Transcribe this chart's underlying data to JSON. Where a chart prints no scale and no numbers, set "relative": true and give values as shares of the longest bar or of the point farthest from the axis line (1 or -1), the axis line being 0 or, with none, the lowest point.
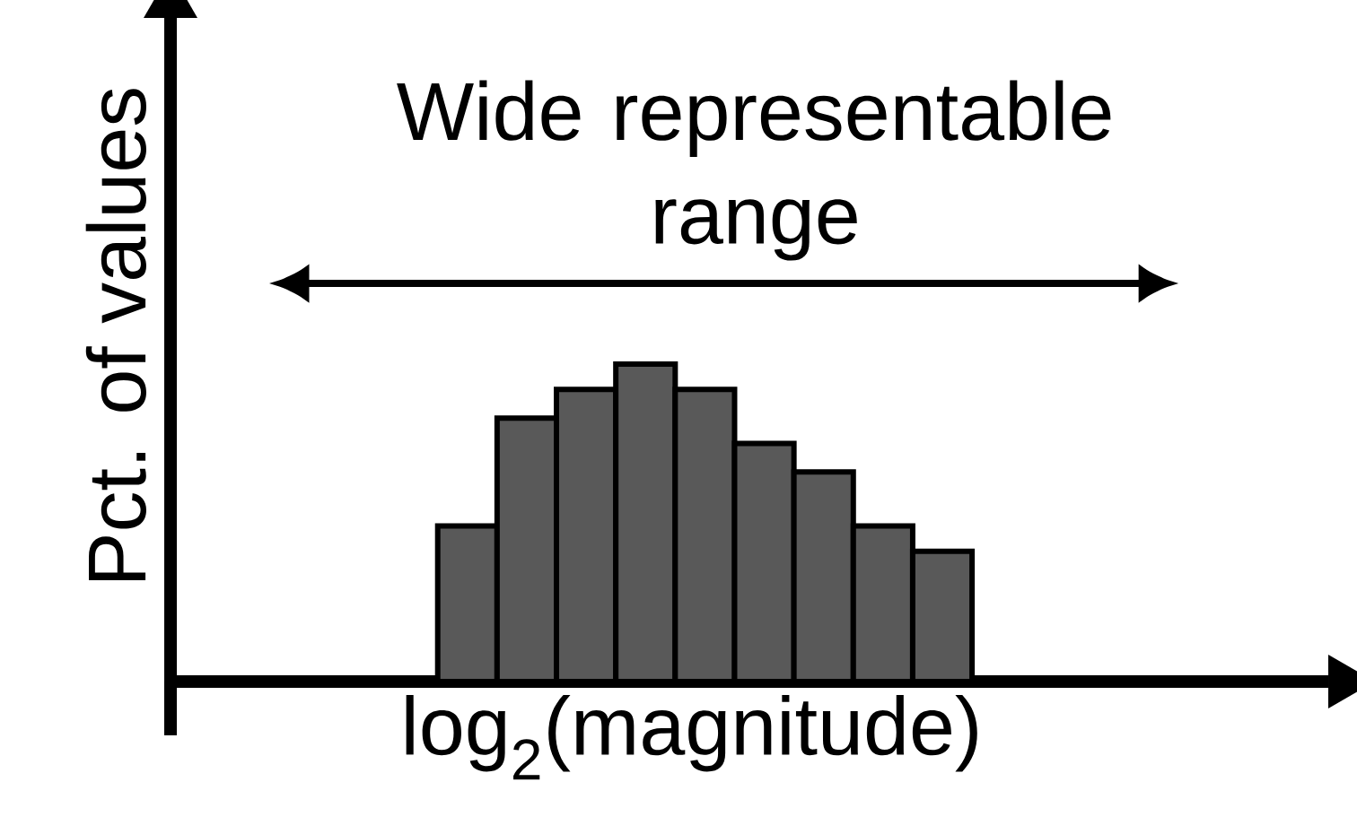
{
  "chart_data": {
    "type": "bar",
    "xlabel": "log$_{2}$(magnitude)",
    "ylabel": "Pct. of values",
    "relative": true,
    "categories": [
      null,
      null,
      null,
      null,
      null,
      null,
      null,
      null,
      null
    ],
    "values": [
      0.49,
      0.83,
      0.92,
      1,
      0.92,
      0.75,
      0.66,
      0.49,
      0.41
    ],
    "color": "#595959",
    "annotations": [
      "Wide representable range"
    ]
  }
}
